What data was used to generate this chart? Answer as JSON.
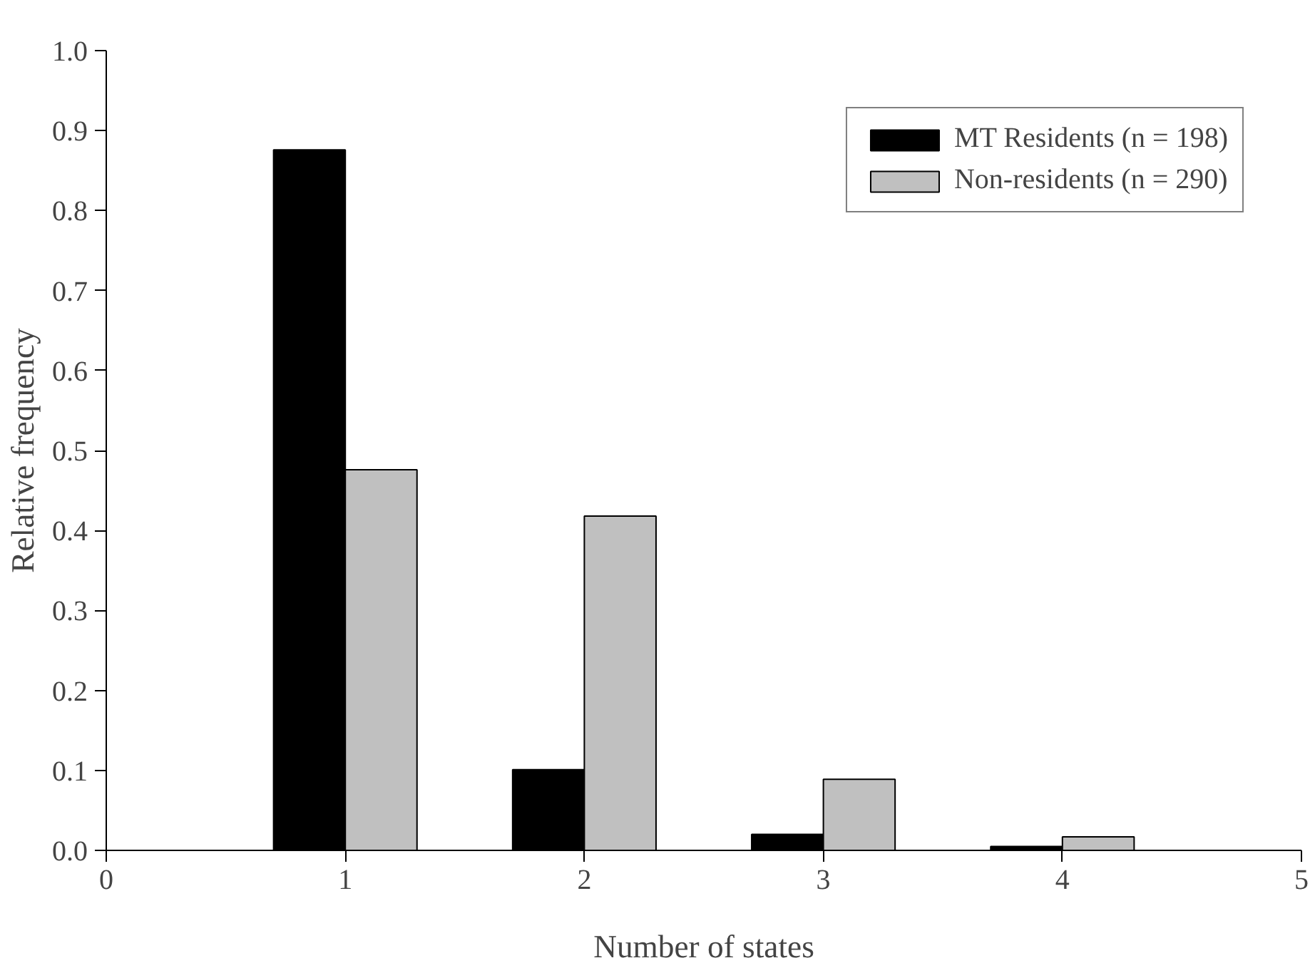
{
  "chart_data": {
    "type": "bar",
    "xlabel": "Number of states",
    "ylabel": "Relative frequency",
    "x": [
      1,
      2,
      3,
      4
    ],
    "series": [
      {
        "name": "MT Residents (n = 198)",
        "color": "#000000",
        "values": [
          0.876,
          0.101,
          0.02,
          0.005
        ]
      },
      {
        "name": "Non-residents (n = 290)",
        "color": "#c0c0c0",
        "values": [
          0.476,
          0.418,
          0.089,
          0.017
        ]
      }
    ],
    "xlim": [
      0,
      5
    ],
    "xticks": [
      0,
      1,
      2,
      3,
      4,
      5
    ],
    "ylim": [
      0,
      1.0
    ],
    "yticks": [
      {
        "value": 0,
        "label": "0.0"
      },
      {
        "value": 0.1,
        "label": "0.1"
      },
      {
        "value": 0.2,
        "label": "0.2"
      },
      {
        "value": 0.3,
        "label": "0.3"
      },
      {
        "value": 0.4,
        "label": "0.4"
      },
      {
        "value": 0.5,
        "label": "0.5"
      },
      {
        "value": 0.6,
        "label": "0.6"
      },
      {
        "value": 0.7,
        "label": "0.7"
      },
      {
        "value": 0.8,
        "label": "0.8"
      },
      {
        "value": 0.9,
        "label": "0.9"
      },
      {
        "value": 1.0,
        "label": "1.0"
      }
    ],
    "grid": false,
    "legend": "top right"
  }
}
